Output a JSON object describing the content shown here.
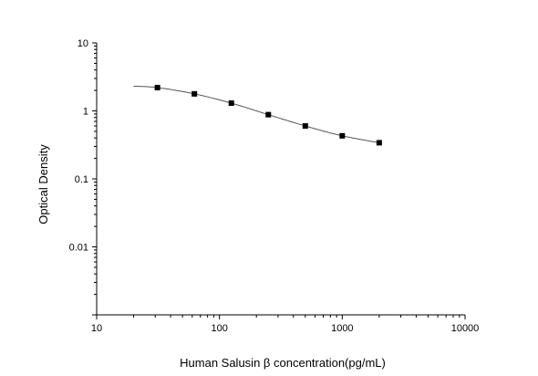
{
  "chart_data": {
    "type": "scatter",
    "title": "",
    "xlabel": "Human Salusin β  concentration(pg/mL)",
    "ylabel": "Optical Density",
    "x_scale": "log",
    "y_scale": "log",
    "xlim": [
      10,
      10000
    ],
    "ylim": [
      0.001,
      10
    ],
    "x_ticks": [
      "10",
      "100",
      "1000",
      "10000"
    ],
    "y_ticks": [
      "10",
      "1",
      "0.1",
      "0.01"
    ],
    "grid": false,
    "legend": "none",
    "series": [
      {
        "marker": "square",
        "x": [
          31.25,
          62.5,
          125,
          250,
          500,
          1000,
          2000
        ],
        "y": [
          2.2,
          1.78,
          1.3,
          0.88,
          0.6,
          0.43,
          0.34
        ]
      }
    ],
    "fit_curve": {
      "type": "smooth",
      "x_range": [
        20,
        2000
      ]
    },
    "colors": {
      "axis": "#000000",
      "marker": "#000000",
      "curve": "#555555"
    }
  }
}
